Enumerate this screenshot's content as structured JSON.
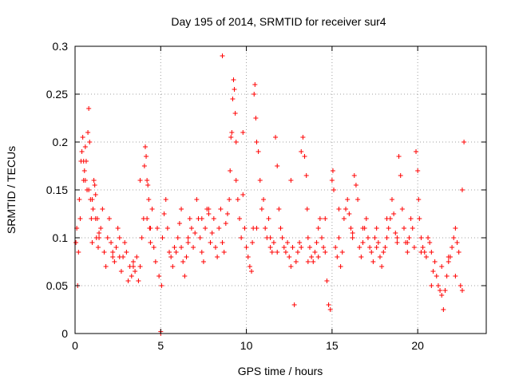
{
  "chart_data": {
    "type": "scatter",
    "title": "Day 195 of 2014, SRMTID for receiver sur4",
    "xlabel": "GPS time / hours",
    "ylabel": "SRMTID / TECUs",
    "xlim": [
      0,
      24
    ],
    "ylim": [
      0,
      0.3
    ],
    "xticks": [
      0,
      5,
      10,
      15,
      20
    ],
    "xtick_labels": [
      "0",
      "5",
      "10",
      "15",
      "20"
    ],
    "yticks": [
      0,
      0.05,
      0.1,
      0.15,
      0.2,
      0.25,
      0.3
    ],
    "ytick_labels": [
      "0",
      "0.05",
      "0.1",
      "0.15",
      "0.2",
      "0.25",
      "0.3"
    ],
    "grid": true,
    "marker": "plus",
    "color": "#ff0000",
    "series": [
      {
        "name": "sur4",
        "x": [
          0.05,
          0.1,
          0.15,
          0.2,
          0.25,
          0.3,
          0.35,
          0.4,
          0.45,
          0.5,
          0.55,
          0.6,
          0.65,
          0.7,
          0.75,
          0.8,
          0.85,
          0.9,
          0.95,
          1.0,
          1.05,
          1.1,
          1.15,
          1.2,
          1.25,
          1.3,
          1.35,
          1.4,
          1.5,
          1.6,
          1.7,
          1.8,
          1.9,
          2.0,
          2.1,
          2.2,
          2.3,
          2.4,
          2.5,
          2.6,
          2.7,
          2.8,
          2.9,
          3.0,
          3.1,
          3.2,
          3.3,
          3.4,
          3.5,
          3.6,
          3.7,
          3.8,
          3.9,
          4.0,
          4.05,
          4.1,
          4.15,
          4.2,
          4.25,
          4.3,
          4.35,
          4.4,
          4.5,
          4.6,
          4.7,
          4.8,
          4.9,
          5.0,
          5.0,
          5.05,
          5.1,
          5.2,
          5.3,
          5.4,
          5.5,
          5.6,
          5.7,
          5.8,
          5.9,
          6.0,
          6.1,
          6.2,
          6.3,
          6.4,
          6.5,
          6.6,
          6.7,
          6.8,
          6.9,
          7.0,
          7.1,
          7.2,
          7.3,
          7.4,
          7.5,
          7.6,
          7.7,
          7.8,
          7.9,
          8.0,
          8.1,
          8.2,
          8.3,
          8.4,
          8.5,
          8.6,
          8.7,
          8.8,
          8.9,
          9.0,
          9.05,
          9.1,
          9.15,
          9.2,
          9.25,
          9.3,
          9.35,
          9.4,
          9.5,
          9.6,
          9.7,
          9.8,
          9.9,
          10.0,
          10.1,
          10.2,
          10.3,
          10.35,
          10.4,
          10.45,
          10.5,
          10.55,
          10.6,
          10.7,
          10.8,
          10.9,
          11.0,
          11.1,
          11.2,
          11.3,
          11.4,
          11.5,
          11.6,
          11.7,
          11.8,
          11.9,
          12.0,
          12.1,
          12.2,
          12.3,
          12.4,
          12.5,
          12.6,
          12.7,
          12.8,
          12.9,
          13.0,
          13.1,
          13.2,
          13.3,
          13.4,
          13.5,
          13.55,
          13.6,
          13.7,
          13.8,
          13.9,
          14.0,
          14.1,
          14.2,
          14.3,
          14.4,
          14.5,
          14.6,
          14.7,
          14.8,
          14.9,
          15.0,
          15.05,
          15.1,
          15.2,
          15.3,
          15.4,
          15.5,
          15.6,
          15.7,
          15.8,
          15.9,
          16.0,
          16.1,
          16.2,
          16.3,
          16.4,
          16.5,
          16.6,
          16.7,
          16.8,
          16.9,
          17.0,
          17.1,
          17.2,
          17.3,
          17.4,
          17.5,
          17.6,
          17.7,
          17.8,
          17.9,
          18.0,
          18.1,
          18.2,
          18.3,
          18.4,
          18.5,
          18.6,
          18.7,
          18.8,
          18.9,
          19.0,
          19.1,
          19.2,
          19.3,
          19.4,
          19.5,
          19.6,
          19.7,
          19.8,
          19.9,
          20.0,
          20.05,
          20.1,
          20.2,
          20.3,
          20.4,
          20.5,
          20.6,
          20.7,
          20.8,
          20.9,
          21.0,
          21.1,
          21.2,
          21.3,
          21.4,
          21.5,
          21.6,
          21.7,
          21.8,
          21.9,
          22.0,
          22.1,
          22.2,
          22.3,
          22.4,
          22.5,
          22.6,
          22.7,
          0.5,
          0.6,
          0.8,
          1.0,
          1.2,
          1.4,
          2.2,
          2.6,
          3.4,
          3.8,
          4.2,
          4.4,
          6.2,
          6.6,
          7.4,
          7.8,
          8.6,
          9.4,
          9.8,
          10.6,
          11.4,
          11.8,
          12.6,
          13.2,
          13.6,
          14.2,
          14.6,
          15.4,
          16.2,
          16.8,
          17.6,
          18.2,
          18.8,
          19.4,
          20.2,
          20.8,
          21.4,
          21.8,
          22.2,
          22.6
        ],
        "values": [
          0.095,
          0.11,
          0.05,
          0.085,
          0.14,
          0.12,
          0.18,
          0.19,
          0.205,
          0.16,
          0.17,
          0.195,
          0.18,
          0.15,
          0.21,
          0.235,
          0.2,
          0.14,
          0.12,
          0.095,
          0.13,
          0.16,
          0.155,
          0.145,
          0.1,
          0.12,
          0.09,
          0.105,
          0.11,
          0.13,
          0.085,
          0.07,
          0.1,
          0.12,
          0.095,
          0.08,
          0.075,
          0.09,
          0.11,
          0.1,
          0.065,
          0.08,
          0.095,
          0.085,
          0.055,
          0.07,
          0.06,
          0.075,
          0.065,
          0.08,
          0.055,
          0.07,
          0.1,
          0.12,
          0.175,
          0.195,
          0.185,
          0.16,
          0.155,
          0.14,
          0.11,
          0.095,
          0.13,
          0.09,
          0.075,
          0.11,
          0.06,
          0.0,
          0.002,
          0.05,
          0.1,
          0.125,
          0.14,
          0.11,
          0.085,
          0.08,
          0.07,
          0.09,
          0.085,
          0.1,
          0.115,
          0.13,
          0.075,
          0.06,
          0.08,
          0.095,
          0.12,
          0.11,
          0.09,
          0.105,
          0.14,
          0.12,
          0.1,
          0.085,
          0.075,
          0.11,
          0.13,
          0.125,
          0.095,
          0.105,
          0.12,
          0.09,
          0.08,
          0.11,
          0.13,
          0.095,
          0.085,
          0.115,
          0.125,
          0.14,
          0.17,
          0.205,
          0.21,
          0.245,
          0.265,
          0.255,
          0.23,
          0.16,
          0.14,
          0.12,
          0.1,
          0.145,
          0.11,
          0.09,
          0.08,
          0.07,
          0.065,
          0.095,
          0.11,
          0.25,
          0.26,
          0.225,
          0.2,
          0.19,
          0.16,
          0.13,
          0.14,
          0.11,
          0.1,
          0.12,
          0.09,
          0.085,
          0.095,
          0.205,
          0.175,
          0.13,
          0.11,
          0.1,
          0.09,
          0.085,
          0.095,
          0.08,
          0.07,
          0.09,
          0.03,
          0.075,
          0.085,
          0.095,
          0.19,
          0.205,
          0.185,
          0.165,
          0.13,
          0.1,
          0.09,
          0.08,
          0.075,
          0.085,
          0.095,
          0.11,
          0.12,
          0.1,
          0.09,
          0.085,
          0.055,
          0.03,
          0.025,
          0.16,
          0.17,
          0.15,
          0.09,
          0.08,
          0.1,
          0.07,
          0.085,
          0.12,
          0.13,
          0.14,
          0.125,
          0.11,
          0.105,
          0.165,
          0.155,
          0.14,
          0.09,
          0.08,
          0.095,
          0.11,
          0.12,
          0.1,
          0.09,
          0.085,
          0.075,
          0.1,
          0.11,
          0.095,
          0.08,
          0.07,
          0.085,
          0.09,
          0.1,
          0.11,
          0.12,
          0.14,
          0.125,
          0.105,
          0.095,
          0.185,
          0.165,
          0.13,
          0.11,
          0.095,
          0.085,
          0.1,
          0.12,
          0.11,
          0.09,
          0.19,
          0.17,
          0.14,
          0.12,
          0.1,
          0.09,
          0.085,
          0.08,
          0.1,
          0.095,
          0.085,
          0.065,
          0.075,
          0.06,
          0.05,
          0.045,
          0.04,
          0.025,
          0.045,
          0.06,
          0.075,
          0.08,
          0.09,
          0.1,
          0.11,
          0.095,
          0.085,
          0.05,
          0.045,
          0.2,
          0.18,
          0.16,
          0.15,
          0.14,
          0.12,
          0.1,
          0.085,
          0.08,
          0.07,
          0.16,
          0.12,
          0.11,
          0.09,
          0.1,
          0.12,
          0.13,
          0.29,
          0.2,
          0.21,
          0.11,
          0.1,
          0.085,
          0.16,
          0.09,
          0.075,
          0.08,
          0.12,
          0.13,
          0.1,
          0.11,
          0.09,
          0.12,
          0.1,
          0.095,
          0.085,
          0.05,
          0.07,
          0.08,
          0.06,
          0.15
        ]
      }
    ]
  }
}
